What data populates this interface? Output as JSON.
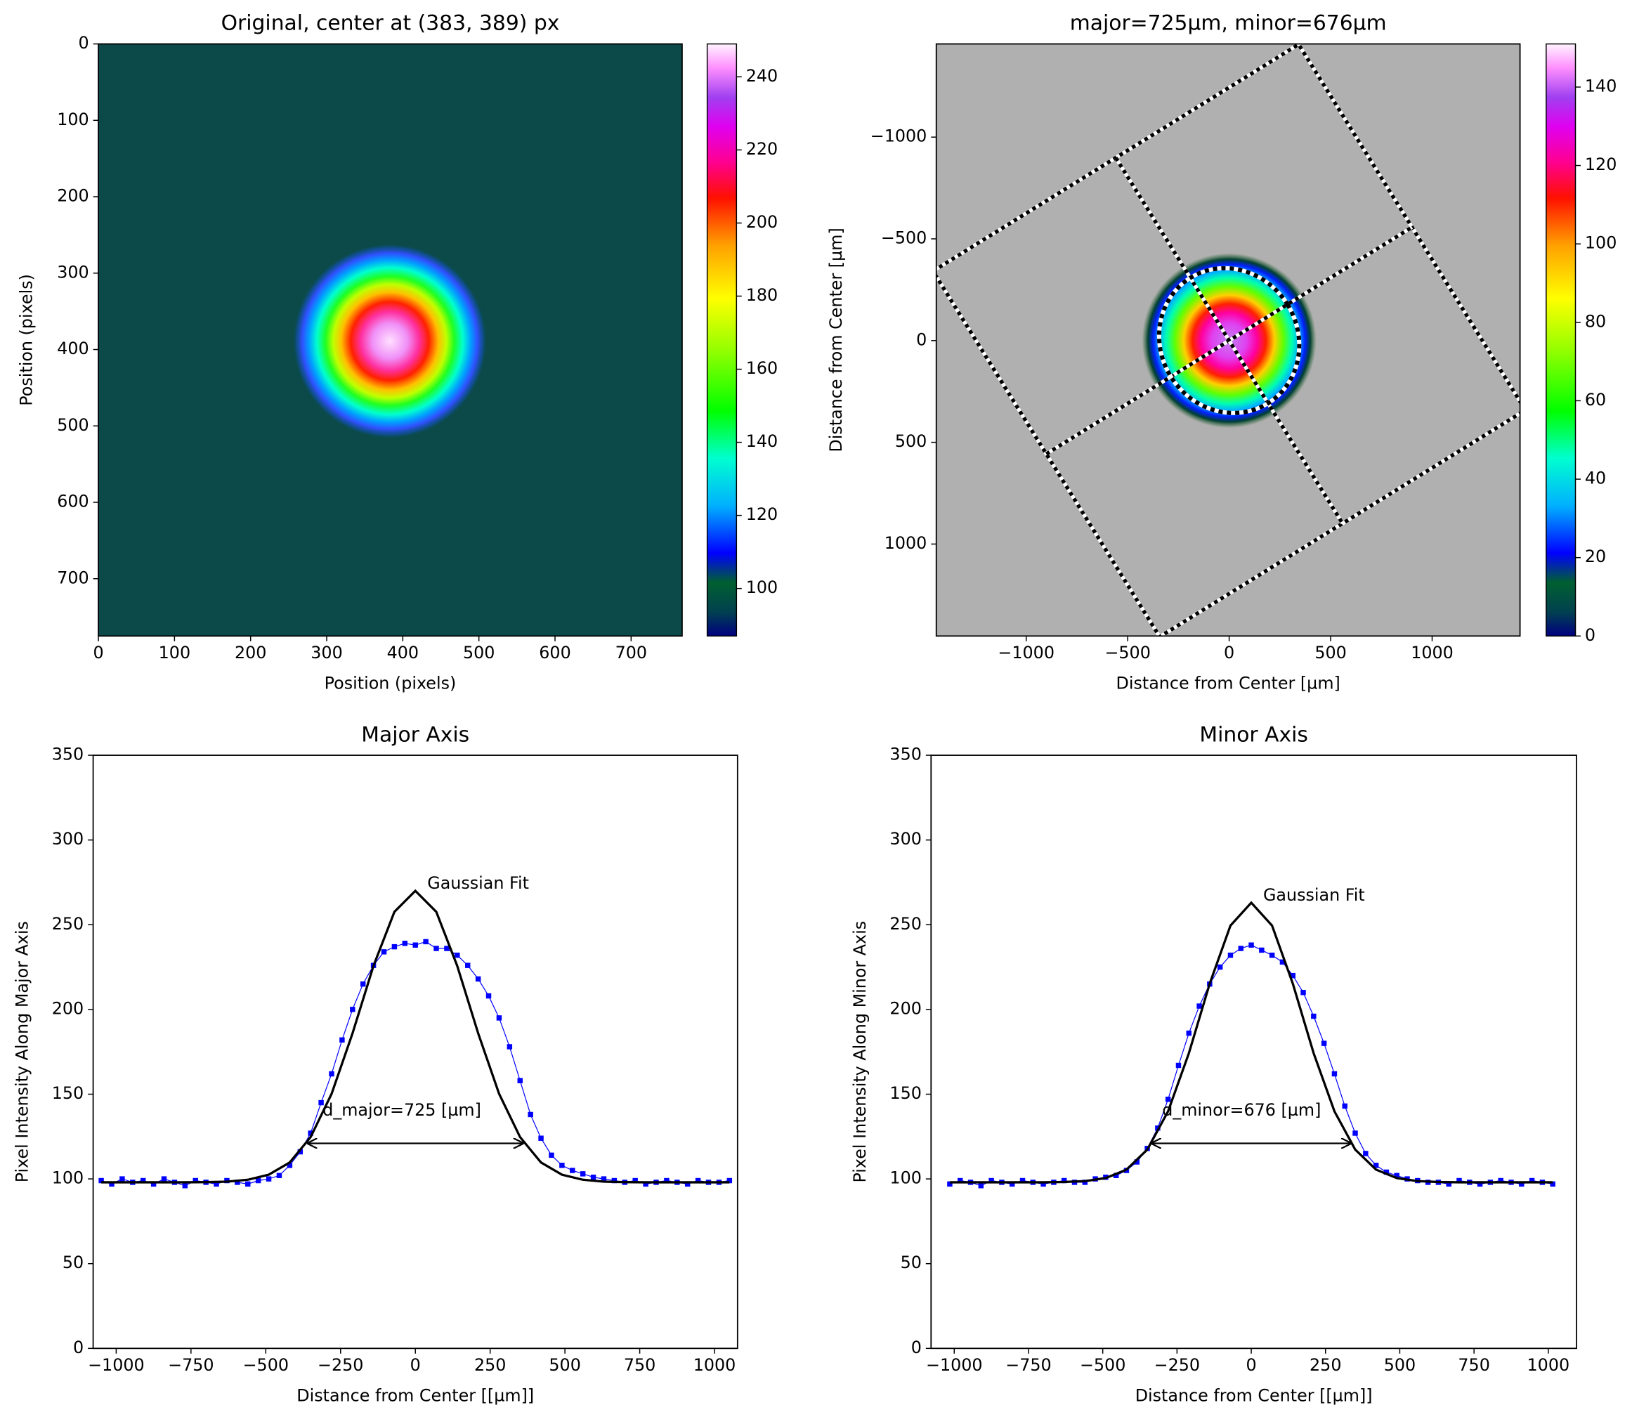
{
  "chart_data": [
    {
      "type": "image",
      "title": "Original, center at (383, 389) px",
      "xlabel": "Position (pixels)",
      "ylabel": "Position (pixels)",
      "xlim": [
        0,
        767
      ],
      "ylim": [
        775,
        0
      ],
      "xticks": [
        0,
        100,
        200,
        300,
        400,
        500,
        600,
        700
      ],
      "yticks": [
        0,
        100,
        200,
        300,
        400,
        500,
        600,
        700
      ],
      "center": [
        383,
        389
      ],
      "background": "#0b4a48",
      "colorbar": {
        "lim": [
          87,
          249
        ],
        "ticks": [
          100,
          120,
          140,
          160,
          180,
          200,
          220,
          240
        ]
      }
    },
    {
      "type": "image",
      "title": "major=725µm, minor=676µm",
      "xlabel": "Distance from Center [µm]",
      "ylabel": "Distance from Center [µm]",
      "xlim": [
        -1443,
        1433
      ],
      "ylim": [
        1452,
        -1458
      ],
      "xticks": [
        {
          "value": -1000,
          "label": "−1000"
        },
        {
          "value": -500,
          "label": "−500"
        },
        0,
        500,
        1000
      ],
      "yticks": [
        {
          "value": -1000,
          "label": "−1000"
        },
        {
          "value": -500,
          "label": "−500"
        },
        0,
        500,
        1000
      ],
      "ellipse": {
        "major": 725,
        "minor": 676
      },
      "background": "#b0b0b0",
      "colorbar": {
        "lim": [
          0,
          151
        ],
        "ticks": [
          0,
          20,
          40,
          60,
          80,
          100,
          120,
          140
        ]
      }
    },
    {
      "type": "profile",
      "title": "Major Axis",
      "xlabel": "Distance from Center [[µm]]",
      "ylabel": "Pixel Intensity Along Major Axis",
      "xlim": [
        -1077,
        1077
      ],
      "ylim": [
        0,
        350
      ],
      "xticks": [
        {
          "value": -1000,
          "label": "−1000"
        },
        {
          "value": -750,
          "label": "−750"
        },
        {
          "value": -500,
          "label": "−500"
        },
        {
          "value": -250,
          "label": "−250"
        },
        0,
        250,
        500,
        750,
        1000
      ],
      "yticks": [
        0,
        50,
        100,
        150,
        200,
        250,
        300,
        350
      ],
      "series": [
        {
          "kind": "markers",
          "color": "#0000ff",
          "x": [
            -1050,
            -1015,
            -980,
            -945,
            -910,
            -875,
            -840,
            -805,
            -770,
            -735,
            -700,
            -665,
            -630,
            -595,
            -560,
            -525,
            -490,
            -455,
            -420,
            -385,
            -350,
            -315,
            -280,
            -245,
            -210,
            -175,
            -140,
            -105,
            -70,
            -35,
            0,
            35,
            70,
            105,
            140,
            175,
            210,
            245,
            280,
            315,
            350,
            385,
            420,
            455,
            490,
            525,
            560,
            595,
            630,
            665,
            700,
            735,
            770,
            805,
            840,
            875,
            910,
            945,
            980,
            1015,
            1050
          ],
          "values": [
            99,
            97,
            100,
            98,
            99,
            97,
            100,
            98,
            96,
            99,
            98,
            97,
            99,
            98,
            97,
            99,
            100,
            102,
            108,
            116,
            127,
            145,
            162,
            182,
            200,
            215,
            226,
            234,
            237,
            239,
            238,
            240,
            236,
            236,
            232,
            226,
            218,
            208,
            195,
            178,
            158,
            138,
            124,
            114,
            108,
            105,
            103,
            101,
            100,
            99,
            98,
            99,
            97,
            98,
            99,
            98,
            97,
            99,
            98,
            98,
            99
          ]
        },
        {
          "kind": "line",
          "color": "#000000",
          "x": [
            -1050,
            -980,
            -910,
            -840,
            -770,
            -700,
            -630,
            -560,
            -490,
            -420,
            -350,
            -280,
            -210,
            -140,
            -70,
            0,
            70,
            140,
            210,
            280,
            350,
            420,
            490,
            560,
            630,
            700,
            770,
            840,
            910,
            980,
            1050
          ],
          "values": [
            98,
            98,
            98,
            98,
            98,
            98.1,
            98.4,
            99.5,
            102.5,
            109.7,
            124.7,
            150.2,
            185.9,
            225.7,
            257.6,
            270,
            257.6,
            225.7,
            185.9,
            150.2,
            124.7,
            109.7,
            102.5,
            99.5,
            98.4,
            98.1,
            98,
            98,
            98,
            98,
            98
          ]
        }
      ],
      "annotations": [
        {
          "text": "Gaussian Fit",
          "x": 40,
          "y": 274
        },
        {
          "text": "d_major=725 [µm]",
          "x": -310,
          "y": 140
        }
      ],
      "arrow": {
        "x": [
          -362.5,
          362.5
        ],
        "y": 121
      }
    },
    {
      "type": "profile",
      "title": "Minor Axis",
      "xlabel": "Distance from Center [[µm]]",
      "ylabel": "Pixel Intensity Along Minor Axis",
      "xlim": [
        -1078,
        1095
      ],
      "ylim": [
        0,
        350
      ],
      "xticks": [
        {
          "value": -1000,
          "label": "−1000"
        },
        {
          "value": -750,
          "label": "−750"
        },
        {
          "value": -500,
          "label": "−500"
        },
        {
          "value": -250,
          "label": "−250"
        },
        0,
        250,
        500,
        750,
        1000
      ],
      "yticks": [
        0,
        50,
        100,
        150,
        200,
        250,
        300,
        350
      ],
      "series": [
        {
          "kind": "markers",
          "color": "#0000ff",
          "x": [
            -1015,
            -980,
            -945,
            -910,
            -875,
            -840,
            -805,
            -770,
            -735,
            -700,
            -665,
            -630,
            -595,
            -560,
            -525,
            -490,
            -455,
            -420,
            -385,
            -350,
            -315,
            -280,
            -245,
            -210,
            -175,
            -140,
            -105,
            -70,
            -35,
            0,
            35,
            70,
            105,
            140,
            175,
            210,
            245,
            280,
            315,
            350,
            385,
            420,
            455,
            490,
            525,
            560,
            595,
            630,
            665,
            700,
            735,
            770,
            805,
            840,
            875,
            910,
            945,
            980,
            1015
          ],
          "values": [
            97,
            99,
            98,
            96,
            99,
            98,
            97,
            99,
            98,
            97,
            98,
            99,
            98,
            98,
            100,
            101,
            102,
            105,
            110,
            118,
            130,
            147,
            167,
            186,
            202,
            215,
            225,
            232,
            236,
            238,
            235,
            232,
            228,
            220,
            210,
            196,
            180,
            162,
            143,
            127,
            115,
            108,
            104,
            102,
            100,
            99,
            98,
            98,
            97,
            99,
            98,
            97,
            98,
            99,
            98,
            97,
            99,
            98,
            97
          ]
        },
        {
          "kind": "line",
          "color": "#000000",
          "x": [
            -1015,
            -945,
            -875,
            -805,
            -735,
            -700,
            -630,
            -560,
            -490,
            -420,
            -350,
            -280,
            -210,
            -140,
            -70,
            0,
            70,
            140,
            210,
            280,
            350,
            420,
            490,
            560,
            630,
            700,
            735,
            805,
            875,
            945,
            1015
          ],
          "values": [
            98,
            98,
            98,
            98,
            98,
            98,
            98.2,
            98.7,
            100.5,
            105.5,
            117.3,
            139.9,
            174.2,
            215.2,
            249.5,
            263,
            249.5,
            215.2,
            174.2,
            139.9,
            117.3,
            105.5,
            100.5,
            98.7,
            98.2,
            98,
            98,
            98,
            98,
            98,
            98
          ]
        }
      ],
      "annotations": [
        {
          "text": "Gaussian Fit",
          "x": 40,
          "y": 267
        },
        {
          "text": "d_minor=676 [µm]",
          "x": -300,
          "y": 140
        }
      ],
      "arrow": {
        "x": [
          -338,
          338
        ],
        "y": 121
      }
    }
  ]
}
